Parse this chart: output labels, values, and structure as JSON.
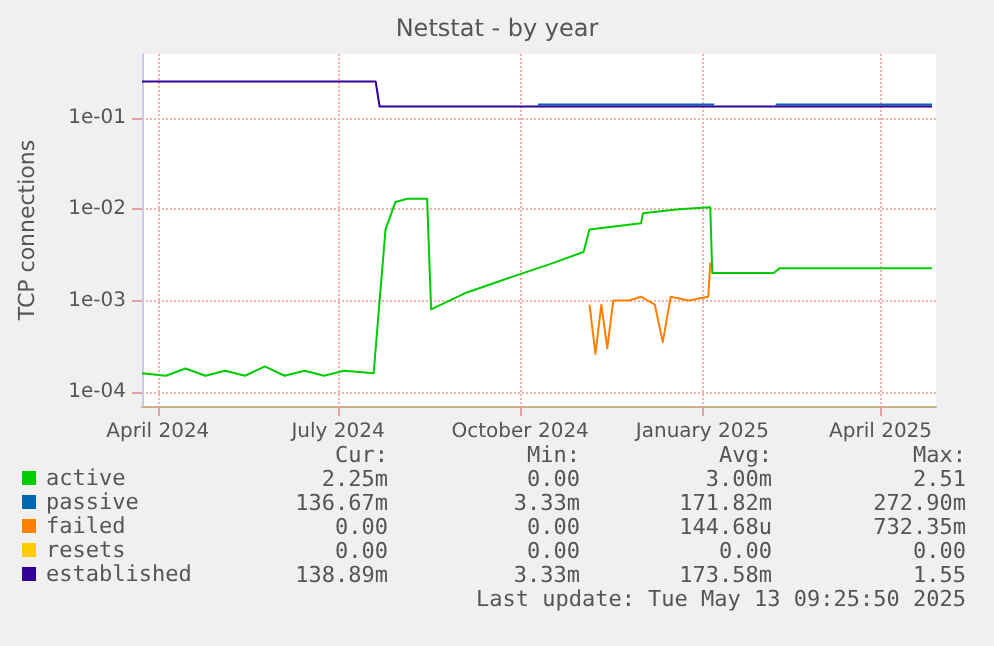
{
  "chart_data": {
    "type": "line",
    "title": "Netstat - by year",
    "ylabel": "TCP connections",
    "log": "y",
    "grid": true,
    "legend": "bottom left",
    "marker": "none",
    "line_style": "solid",
    "xlim": [
      "2024-03-24",
      "2025-04-29"
    ],
    "xticks": [
      {
        "value": "2024-04-01",
        "label": "April 2024"
      },
      {
        "value": "2024-07-01",
        "label": "July 2024"
      },
      {
        "value": "2024-10-01",
        "label": "October 2024"
      },
      {
        "value": "2025-01-01",
        "label": "January 2025"
      },
      {
        "value": "2025-04-01",
        "label": "April 2025"
      }
    ],
    "ylim": [
      7e-05,
      0.5
    ],
    "yticks": [
      {
        "value": 0.0001,
        "label": "1e-04"
      },
      {
        "value": 0.001,
        "label": "1e-03"
      },
      {
        "value": 0.01,
        "label": "1e-02"
      },
      {
        "value": 0.1,
        "label": "1e-01"
      }
    ],
    "series": [
      {
        "name": "active",
        "color": "#00cc00",
        "x": [
          "2024-03-24",
          "2024-04-05",
          "2024-04-15",
          "2024-04-25",
          "2024-05-05",
          "2024-05-15",
          "2024-05-25",
          "2024-06-04",
          "2024-06-14",
          "2024-06-24",
          "2024-07-04",
          "2024-07-19",
          "2024-07-22",
          "2024-07-25",
          "2024-07-30",
          "2024-08-05",
          "2024-08-15",
          "2024-08-17",
          "2024-09-03",
          "2024-09-23",
          "2024-10-16",
          "2024-11-02",
          "2024-11-05",
          "2024-12-01",
          "2024-12-02",
          "2024-12-20",
          "2025-01-05",
          "2025-01-06",
          "2025-02-06",
          "2025-02-09",
          "2025-04-27"
        ],
        "values": [
          0.00016,
          0.00015,
          0.00018,
          0.00015,
          0.00017,
          0.00015,
          0.00019,
          0.00015,
          0.00017,
          0.00015,
          0.00017,
          0.00016,
          0.001,
          0.006,
          0.012,
          0.013,
          0.013,
          0.0008,
          0.0012,
          0.0017,
          0.0025,
          0.0034,
          0.006,
          0.007,
          0.009,
          0.01,
          0.0105,
          0.002,
          0.002,
          0.00225,
          0.00225
        ]
      },
      {
        "name": "passive",
        "color": "#0066b3",
        "x": [
          "2024-10-10",
          "2025-01-07",
          "2025-01-20",
          "2025-02-07",
          "2025-04-27"
        ],
        "values": [
          0.14,
          0.14,
          null,
          0.14,
          0.14
        ]
      },
      {
        "name": "failed",
        "color": "#ff8000",
        "x": [
          "2024-11-05",
          "2024-11-08",
          "2024-11-11",
          "2024-11-14",
          "2024-11-17",
          "2024-11-25",
          "2024-12-01",
          "2024-12-08",
          "2024-12-12",
          "2024-12-16",
          "2024-12-25",
          "2025-01-04",
          "2025-01-05"
        ],
        "values": [
          0.0009,
          0.00026,
          0.0009,
          0.0003,
          0.001,
          0.001,
          0.0011,
          0.0009,
          0.00035,
          0.0011,
          0.001,
          0.0011,
          0.0026
        ]
      },
      {
        "name": "resets",
        "color": "#ffcc00"
      },
      {
        "name": "established",
        "color": "#330099",
        "x": [
          "2024-03-24",
          "2024-07-20",
          "2024-07-22",
          "2025-04-27"
        ],
        "values": [
          0.25,
          0.25,
          0.133,
          0.133
        ]
      }
    ],
    "annotations": [
      "Cur:",
      "Min:",
      "Avg:",
      "Max:",
      "2.25m",
      "0.00",
      "3.00m",
      "2.51",
      "136.67m",
      "3.33m",
      "171.82m",
      "272.90m",
      "0.00",
      "0.00",
      "144.68u",
      "732.35m",
      "0.00",
      "0.00",
      "0.00",
      "0.00",
      "138.89m",
      "3.33m",
      "173.58m",
      "1.55",
      "Last update: Tue May 13 09:25:50 2025"
    ]
  }
}
